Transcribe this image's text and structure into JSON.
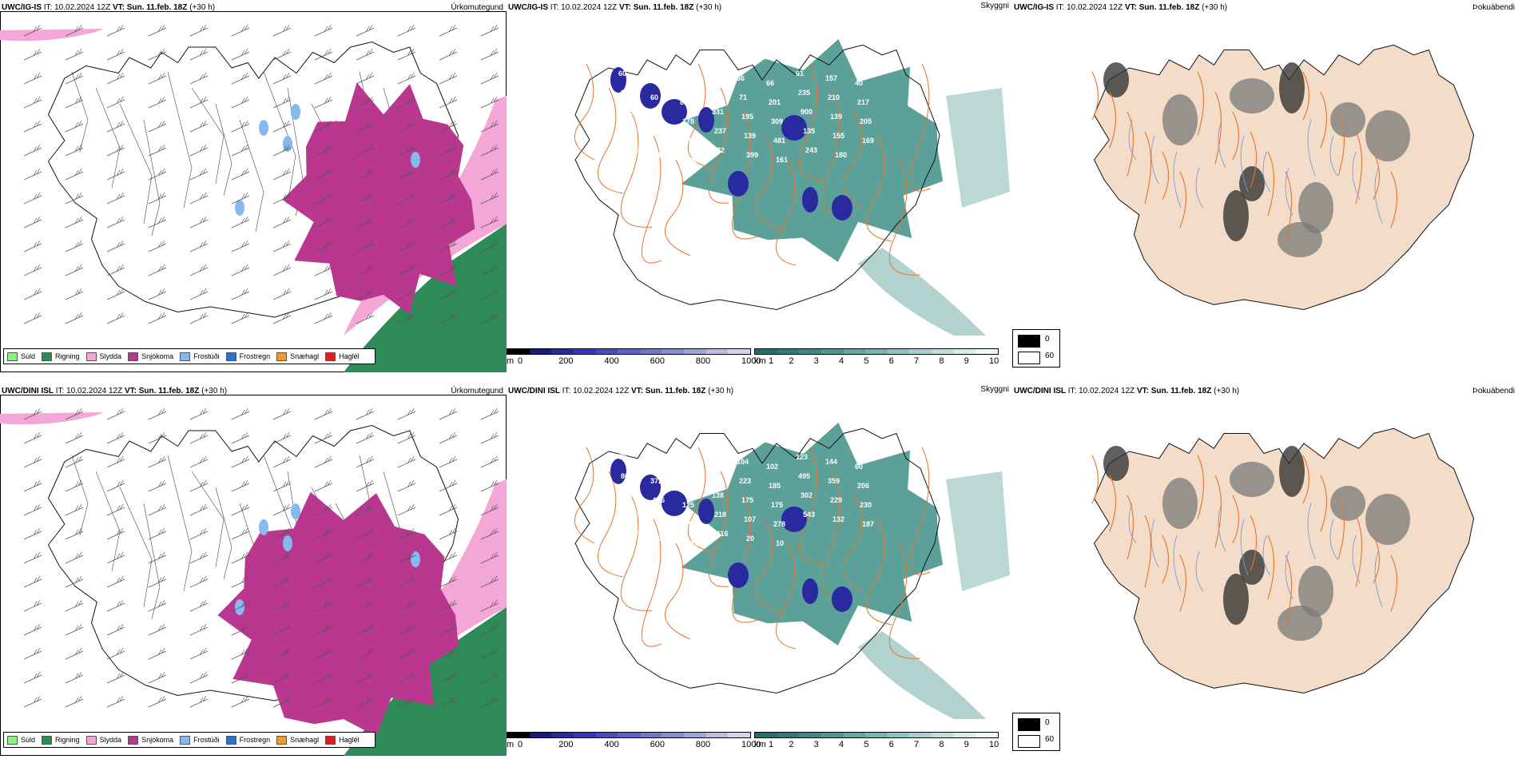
{
  "rows": [
    {
      "precip": {
        "model": "UWC/IG-IS",
        "it": "IT: 10.02.2024 12Z",
        "vt_label": "VT:",
        "vt": "Sun. 11.feb. 18Z",
        "lead": "(+30 h)",
        "name": "Úrkomutegund"
      },
      "vis": {
        "model": "UWC/IG-IS",
        "it": "IT: 10.02.2024 12Z",
        "vt_label": "VT:",
        "vt": "Sun. 11.feb. 18Z",
        "lead": "(+30 h)",
        "name": "Skyggni"
      },
      "fog": {
        "model": "UWC/IG-IS",
        "it": "IT: 10.02.2024 12Z",
        "vt_label": "VT:",
        "vt": "Sun. 11.feb. 18Z",
        "lead": "(+30 h)",
        "name": "Þokuábendi"
      },
      "vis_values": [
        "60",
        "66",
        "67",
        "89",
        "66",
        "66",
        "61",
        "157",
        "40",
        "62",
        "60",
        "83",
        "108",
        "71",
        "201",
        "235",
        "210",
        "217",
        "161",
        "93",
        "178",
        "331",
        "195",
        "309",
        "900",
        "139",
        "205",
        "172",
        "138",
        "48",
        "237",
        "139",
        "481",
        "135",
        "155",
        "169",
        "179",
        "152",
        "188",
        "82",
        "399",
        "161",
        "243",
        "180"
      ]
    },
    {
      "precip": {
        "model": "UWC/DINI ISL",
        "it": "IT: 10.02.2024 12Z",
        "vt_label": "VT:",
        "vt": "Sun. 11.feb. 18Z",
        "lead": "(+30 h)",
        "name": "Úrkomutegund"
      },
      "vis": {
        "model": "UWC/DINI ISL",
        "it": "IT: 10.02.2024 12Z",
        "vt_label": "VT:",
        "vt": "Sun. 11.feb. 18Z",
        "lead": "(+30 h)",
        "name": "Skyggni"
      },
      "fog": {
        "model": "UWC/DINI ISL",
        "it": "IT: 10.02.2024 12Z",
        "vt_label": "VT:",
        "vt": "Sun. 11.feb. 18Z",
        "lead": "(+30 h)",
        "name": "Þokuábendi"
      },
      "vis_values": [
        "79",
        "130",
        "76",
        "90",
        "104",
        "102",
        "123",
        "144",
        "60",
        "86",
        "372",
        "246",
        "257",
        "223",
        "185",
        "495",
        "359",
        "206",
        "124",
        "106",
        "125",
        "138",
        "175",
        "175",
        "302",
        "229",
        "230",
        "135",
        "481",
        "592",
        "218",
        "107",
        "278",
        "543",
        "132",
        "187",
        "284",
        "243",
        "117",
        "116",
        "20",
        "10"
      ]
    }
  ],
  "precip_legend": [
    {
      "label": "Súld",
      "color": "#90ee90"
    },
    {
      "label": "Rigning",
      "color": "#2e8b57"
    },
    {
      "label": "Slydda",
      "color": "#f4a6d7"
    },
    {
      "label": "Snjókoma",
      "color": "#b9378f"
    },
    {
      "label": "Frostúði",
      "color": "#87b8f0"
    },
    {
      "label": "Frostregn",
      "color": "#2d6fcc"
    },
    {
      "label": "Snæhagl",
      "color": "#f39b1c"
    },
    {
      "label": "Haglél",
      "color": "#e02020"
    }
  ],
  "elev_scale": {
    "unit": "m",
    "ticks": [
      "0",
      "200",
      "400",
      "600",
      "800",
      "1000"
    ],
    "colors": [
      "#000000",
      "#1a1a7a",
      "#2a2aa0",
      "#3838b8",
      "#4b4bc4",
      "#5e5ec8",
      "#7575cc",
      "#8c8cd4",
      "#a3a3dc",
      "#bbbbe4",
      "#d3d3ee"
    ]
  },
  "vis_scale": {
    "unit": "km",
    "ticks": [
      "1",
      "2",
      "3",
      "4",
      "5",
      "6",
      "7",
      "8",
      "9",
      "10"
    ],
    "colors": [
      "#1f6e6a",
      "#2a7f7a",
      "#378c86",
      "#4a9a94",
      "#5ea8a2",
      "#74b6b0",
      "#8cc4be",
      "#a4d2cc",
      "#bde0dc",
      "#d6eeea",
      "#f0f9f8"
    ]
  },
  "fog_scale": {
    "values": [
      "0",
      "60"
    ],
    "colors": [
      "#000000",
      "#ffffff"
    ]
  },
  "colors": {
    "snow": "#b9378f",
    "sleet": "#f4a6d7",
    "rain": "#2e8b57",
    "freezing": "#87b8f0",
    "vis_fill": "#3f8f88",
    "land": "#f3dcc8",
    "roads": "#e8742a",
    "rivers": "#7a9ae8"
  }
}
